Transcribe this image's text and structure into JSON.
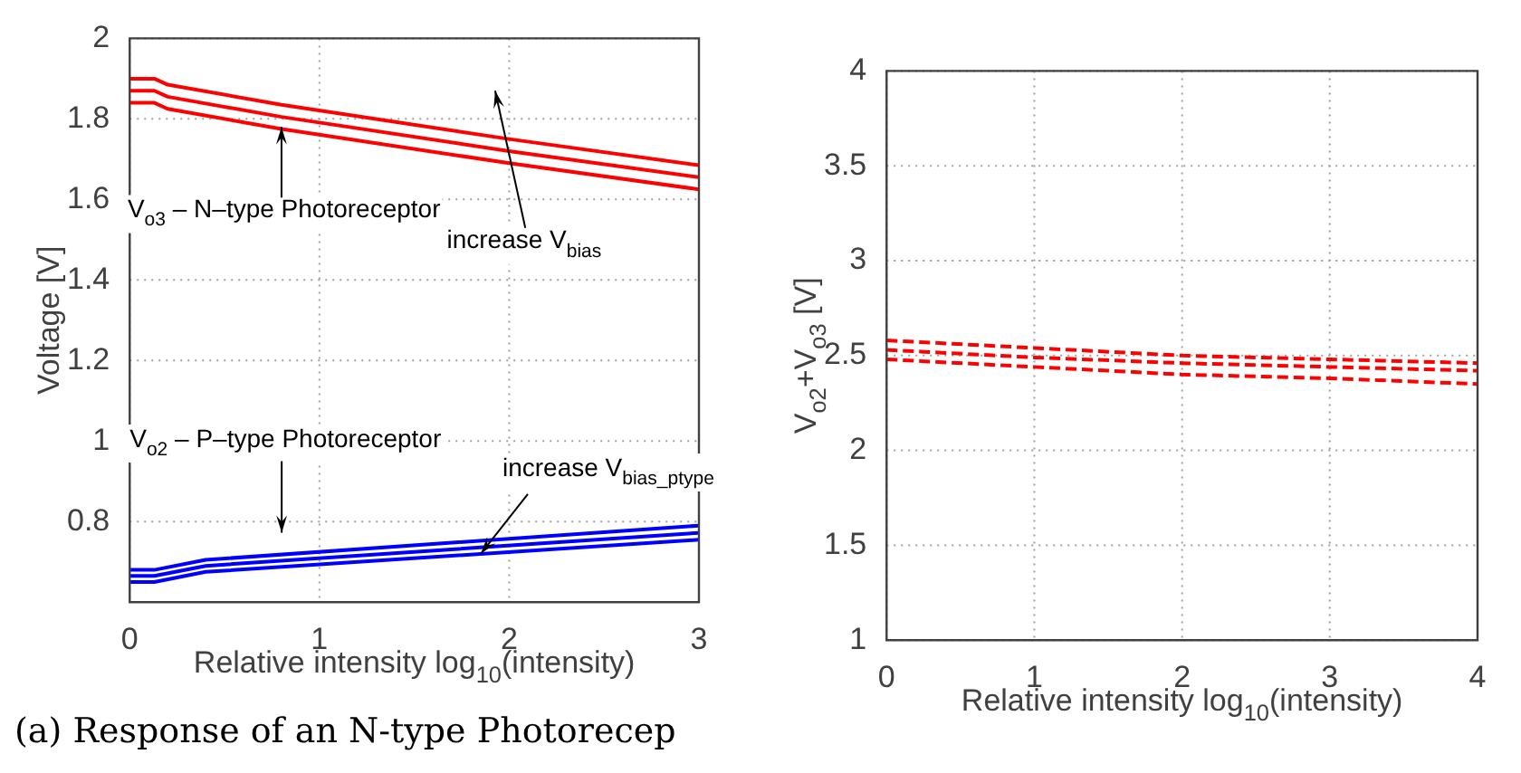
{
  "chart_data": [
    {
      "type": "line",
      "xlabel": "Relative intensity log$_{10}$(intensity)",
      "ylabel": "Voltage [V]",
      "xlim": [
        0,
        3
      ],
      "xticks": [
        0,
        1,
        2,
        3
      ],
      "ylim": [
        0.6,
        2
      ],
      "yticks": [
        0.8,
        1,
        1.2,
        1.4,
        1.6,
        1.8,
        2
      ],
      "grid": true,
      "line_style": "solid",
      "marker": "none",
      "series": [
        {
          "color": "#ff0000",
          "x": [
            0,
            0.13,
            0.2,
            0.8,
            2,
            3
          ],
          "values": [
            1.9,
            1.9,
            1.885,
            1.835,
            1.75,
            1.685
          ]
        },
        {
          "color": "#ff0000",
          "x": [
            0,
            0.13,
            0.2,
            0.8,
            2,
            3
          ],
          "values": [
            1.87,
            1.87,
            1.855,
            1.805,
            1.72,
            1.655
          ]
        },
        {
          "color": "#ff0000",
          "x": [
            0,
            0.13,
            0.2,
            0.8,
            2,
            3
          ],
          "values": [
            1.84,
            1.84,
            1.825,
            1.775,
            1.69,
            1.625
          ]
        },
        {
          "color": "#0000ff",
          "x": [
            0,
            0.13,
            0.4,
            3
          ],
          "values": [
            0.68,
            0.68,
            0.705,
            0.79
          ]
        },
        {
          "color": "#0000ff",
          "x": [
            0,
            0.13,
            0.4,
            3
          ],
          "values": [
            0.665,
            0.665,
            0.69,
            0.772
          ]
        },
        {
          "color": "#0000ff",
          "x": [
            0,
            0.13,
            0.4,
            3
          ],
          "values": [
            0.65,
            0.65,
            0.675,
            0.755
          ]
        }
      ],
      "annotations": [
        {
          "text": "V$_{o3}$ – N–type Photoreceptor",
          "x": 0.8,
          "y": 1.78
        },
        "increase V$_{bias}$",
        "V$_{o2}$ – P–type Photoreceptor",
        {
          "text": "increase V$_{bias_ptype}$",
          "x": 1.85,
          "y": 0.72
        },
        "(a) Response of an N-type Photorecep"
      ]
    },
    {
      "type": "line",
      "xlabel": "Relative intensity log$_{10}$(intensity)",
      "ylabel": "V$_{o2}$+V$_{o3}$ [V]",
      "xlim": [
        0,
        4
      ],
      "xticks": [
        0,
        1,
        2,
        3,
        4
      ],
      "ylim": [
        1,
        4
      ],
      "yticks": [
        1,
        1.5,
        2,
        2.5,
        3,
        3.5,
        4
      ],
      "grid": true,
      "line_style": "dashed",
      "marker": "none",
      "series": [
        {
          "color": "#ff0000",
          "x": [
            0,
            1,
            2,
            3,
            4
          ],
          "values": [
            2.58,
            2.54,
            2.5,
            2.48,
            2.46
          ]
        },
        {
          "color": "#ff0000",
          "x": [
            0,
            1,
            2,
            3,
            4
          ],
          "values": [
            2.53,
            2.49,
            2.46,
            2.44,
            2.42
          ]
        },
        {
          "color": "#ff0000",
          "x": [
            0,
            1,
            2,
            3,
            4
          ],
          "values": [
            2.48,
            2.44,
            2.4,
            2.38,
            2.35
          ]
        }
      ]
    }
  ]
}
